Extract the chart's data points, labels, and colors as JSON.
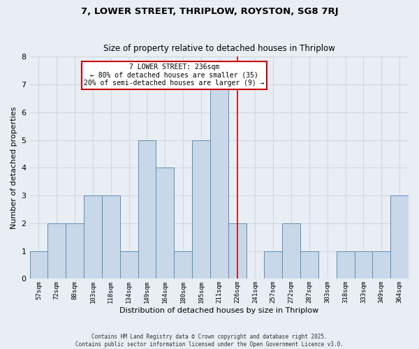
{
  "title1": "7, LOWER STREET, THRIPLOW, ROYSTON, SG8 7RJ",
  "title2": "Size of property relative to detached houses in Thriplow",
  "xlabel": "Distribution of detached houses by size in Thriplow",
  "ylabel": "Number of detached properties",
  "footer": "Contains HM Land Registry data © Crown copyright and database right 2025.\nContains public sector information licensed under the Open Government Licence v3.0.",
  "categories": [
    "57sqm",
    "72sqm",
    "88sqm",
    "103sqm",
    "118sqm",
    "134sqm",
    "149sqm",
    "164sqm",
    "180sqm",
    "195sqm",
    "211sqm",
    "226sqm",
    "241sqm",
    "257sqm",
    "272sqm",
    "287sqm",
    "303sqm",
    "318sqm",
    "333sqm",
    "349sqm",
    "364sqm"
  ],
  "values": [
    1,
    2,
    2,
    3,
    3,
    1,
    5,
    4,
    1,
    5,
    7,
    2,
    0,
    1,
    2,
    1,
    0,
    1,
    1,
    1,
    3
  ],
  "bar_color": "#c8d8e8",
  "bar_edge_color": "#5b8db8",
  "reference_line_x": 11.0,
  "annotation_title": "7 LOWER STREET: 236sqm",
  "annotation_line1": "← 80% of detached houses are smaller (35)",
  "annotation_line2": "20% of semi-detached houses are larger (9) →",
  "annotation_box_color": "#ffffff",
  "annotation_border_color": "#cc0000",
  "ref_line_color": "#cc0000",
  "grid_color": "#d0d8e0",
  "background_color": "#e8eef4",
  "ylim": [
    0,
    8
  ],
  "yticks": [
    0,
    1,
    2,
    3,
    4,
    5,
    6,
    7,
    8
  ]
}
